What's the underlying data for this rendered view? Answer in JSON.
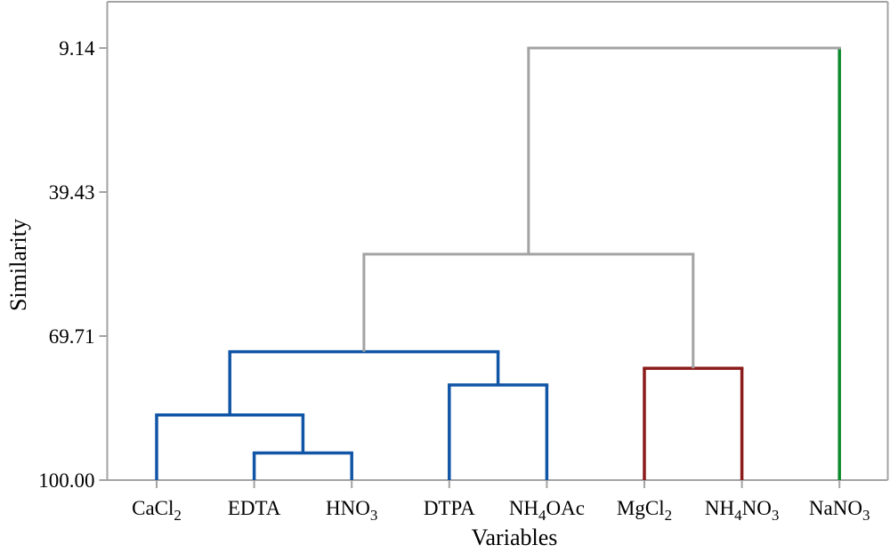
{
  "chart": {
    "y_axis_title": "Similarity",
    "x_axis_title": "Variables"
  },
  "chart_data": {
    "type": "dendrogram",
    "orientation": "vertical, similarity axis inverted (100.00 at bottom, 9.14 at top)",
    "y_axis": {
      "title": "Similarity",
      "ticks": [
        {
          "label": "9.14",
          "value": 9.14
        },
        {
          "label": "39.43",
          "value": 39.43
        },
        {
          "label": "69.71",
          "value": 69.71
        },
        {
          "label": "100.00",
          "value": 100.0
        }
      ]
    },
    "x_axis": {
      "title": "Variables"
    },
    "colors": {
      "blue": "#1155A6",
      "red": "#8C1B1B",
      "green": "#0E8A2E",
      "gray": "#A3A3A3",
      "frame": "#A3A3A3",
      "text": "#000000"
    },
    "leaves": [
      {
        "id": "L0",
        "name": "CaCl2",
        "parts": [
          [
            "CaCl",
            false
          ],
          [
            "2",
            true
          ]
        ],
        "cluster_color": "blue"
      },
      {
        "id": "L1",
        "name": "EDTA",
        "parts": [
          [
            "EDTA",
            false
          ]
        ],
        "cluster_color": "blue"
      },
      {
        "id": "L2",
        "name": "HNO3",
        "parts": [
          [
            "HNO",
            false
          ],
          [
            "3",
            true
          ]
        ],
        "cluster_color": "blue"
      },
      {
        "id": "L3",
        "name": "DTPA",
        "parts": [
          [
            "DTPA",
            false
          ]
        ],
        "cluster_color": "blue"
      },
      {
        "id": "L4",
        "name": "NH4OAc",
        "parts": [
          [
            "NH",
            false
          ],
          [
            "4",
            true
          ],
          [
            "OAc",
            false
          ]
        ],
        "cluster_color": "blue"
      },
      {
        "id": "L5",
        "name": "MgCl2",
        "parts": [
          [
            "MgCl",
            false
          ],
          [
            "2",
            true
          ]
        ],
        "cluster_color": "red"
      },
      {
        "id": "L6",
        "name": "NH4NO3",
        "parts": [
          [
            "NH",
            false
          ],
          [
            "4",
            true
          ],
          [
            "NO",
            false
          ],
          [
            "3",
            true
          ]
        ],
        "cluster_color": "red"
      },
      {
        "id": "L7",
        "name": "NaNO3",
        "parts": [
          [
            "NaNO",
            false
          ],
          [
            "3",
            true
          ]
        ],
        "cluster_color": "green"
      }
    ],
    "merges": [
      {
        "id": "M1",
        "a": "L1",
        "b": "L2",
        "similarity": 94.3,
        "color": "blue"
      },
      {
        "id": "M2",
        "a": "L0",
        "b": "M1",
        "similarity": 86.3,
        "color": "blue"
      },
      {
        "id": "M3",
        "a": "L3",
        "b": "L4",
        "similarity": 80.0,
        "color": "blue"
      },
      {
        "id": "M4",
        "a": "M2",
        "b": "M3",
        "similarity": 73.0,
        "color": "blue"
      },
      {
        "id": "M5",
        "a": "L5",
        "b": "L6",
        "similarity": 76.5,
        "color": "red"
      },
      {
        "id": "M6",
        "a": "M4",
        "b": "M5",
        "similarity": 52.5,
        "color": "gray"
      },
      {
        "id": "M7",
        "a": "M6",
        "b": "L7",
        "similarity": 9.14,
        "color": "gray",
        "b_stem_color": "green"
      }
    ]
  }
}
